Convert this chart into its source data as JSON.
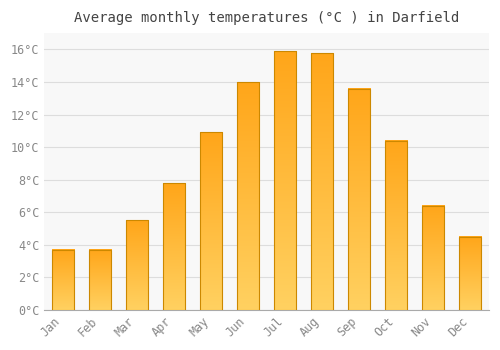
{
  "title": "Average monthly temperatures (°C ) in Darfield",
  "months": [
    "Jan",
    "Feb",
    "Mar",
    "Apr",
    "May",
    "Jun",
    "Jul",
    "Aug",
    "Sep",
    "Oct",
    "Nov",
    "Dec"
  ],
  "values": [
    3.7,
    3.7,
    5.5,
    7.8,
    10.9,
    14.0,
    15.9,
    15.8,
    13.6,
    10.4,
    6.4,
    4.5
  ],
  "bar_color_top": "#FFA500",
  "bar_color_bottom": "#FFD060",
  "bar_edge_color": "#CC8800",
  "background_color": "#FFFFFF",
  "plot_bg_color": "#F8F8F8",
  "grid_color": "#DDDDDD",
  "ylim": [
    0,
    17
  ],
  "yticks": [
    0,
    2,
    4,
    6,
    8,
    10,
    12,
    14,
    16
  ],
  "ytick_labels": [
    "0°C",
    "2°C",
    "4°C",
    "6°C",
    "8°C",
    "10°C",
    "12°C",
    "14°C",
    "16°C"
  ],
  "title_fontsize": 10,
  "tick_fontsize": 8.5,
  "title_color": "#444444",
  "tick_color": "#888888",
  "bar_width": 0.6
}
